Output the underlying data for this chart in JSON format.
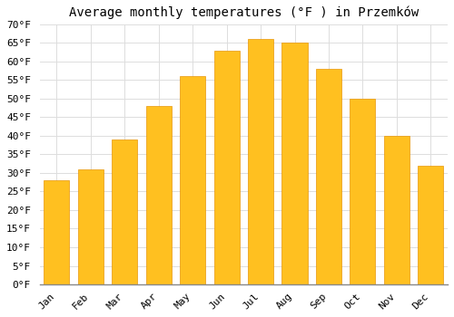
{
  "title": "Average monthly temperatures (°F ) in Przemków",
  "months": [
    "Jan",
    "Feb",
    "Mar",
    "Apr",
    "May",
    "Jun",
    "Jul",
    "Aug",
    "Sep",
    "Oct",
    "Nov",
    "Dec"
  ],
  "values": [
    28,
    31,
    39,
    48,
    56,
    63,
    66,
    65,
    58,
    50,
    40,
    32
  ],
  "bar_color_top": "#FFC020",
  "bar_color_bottom": "#FFA000",
  "bar_edge_color": "#E8960A",
  "background_color": "#FFFFFF",
  "grid_color": "#DDDDDD",
  "ylim": [
    0,
    70
  ],
  "ytick_step": 5,
  "title_fontsize": 10,
  "tick_fontsize": 8,
  "font_family": "monospace"
}
